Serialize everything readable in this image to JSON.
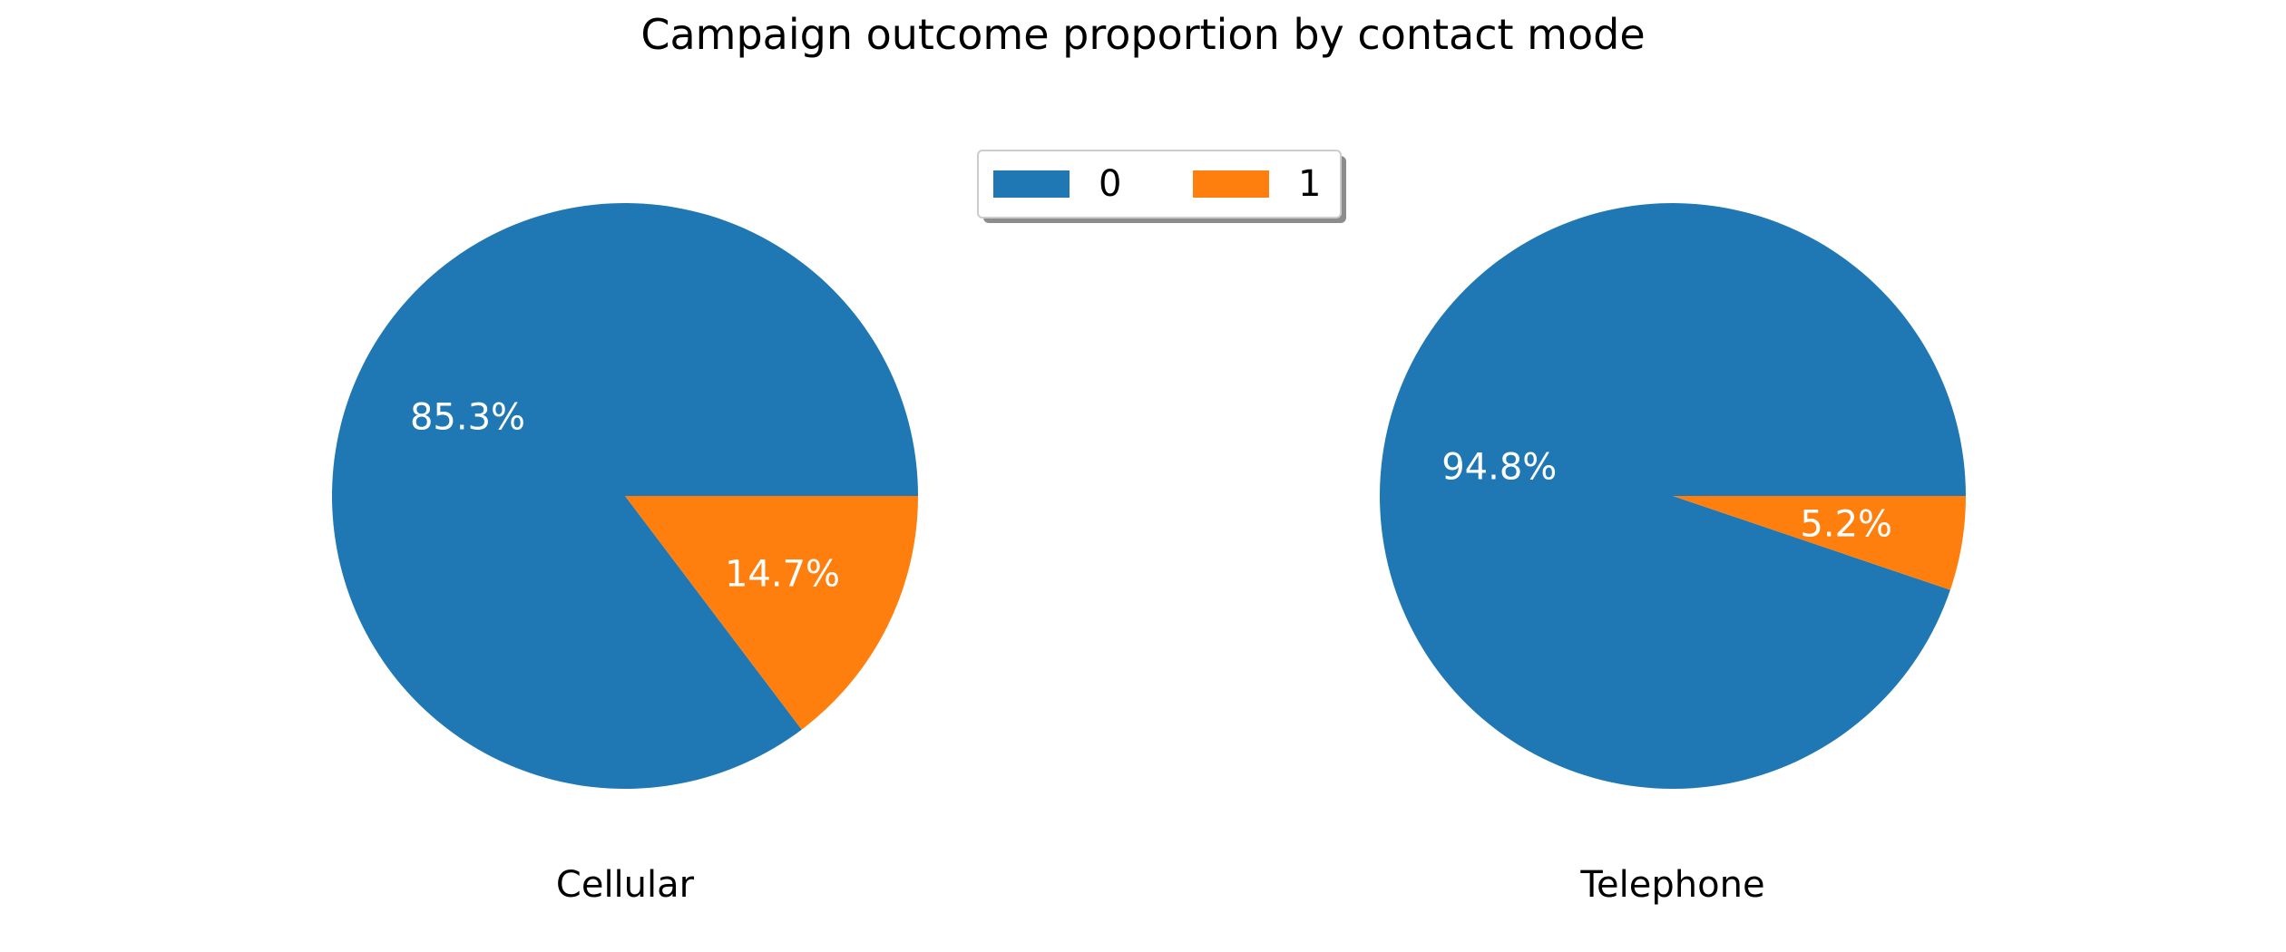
{
  "chart_data": {
    "type": "pie",
    "title": "Campaign outcome proportion by contact mode",
    "legend": {
      "placement": "top-center",
      "entries": [
        {
          "label": "0",
          "color": "#1f77b4"
        },
        {
          "label": "1",
          "color": "#ff7f0e"
        }
      ]
    },
    "pies": [
      {
        "label": "Cellular",
        "slices": [
          {
            "category": "0",
            "value": 85.3,
            "text": "85.3%",
            "color": "#1f77b4"
          },
          {
            "category": "1",
            "value": 14.7,
            "text": "14.7%",
            "color": "#ff7f0e"
          }
        ]
      },
      {
        "label": "Telephone",
        "slices": [
          {
            "category": "0",
            "value": 94.8,
            "text": "94.8%",
            "color": "#1f77b4"
          },
          {
            "category": "1",
            "value": 5.2,
            "text": "5.2%",
            "color": "#ff7f0e"
          }
        ]
      }
    ]
  }
}
